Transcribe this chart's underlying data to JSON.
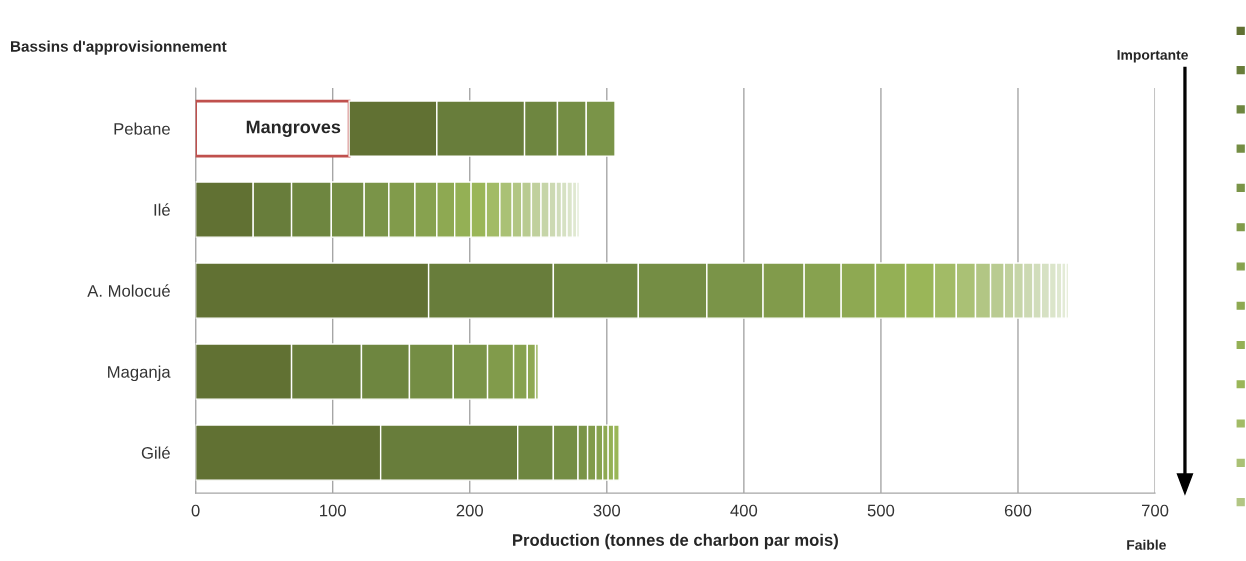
{
  "chart_data": {
    "type": "bar",
    "orientation": "horizontal",
    "stacked": true,
    "ylabel": "Bassins d'approvisionnement",
    "xlabel": "Production (tonnes de charbon par mois)",
    "categories": [
      "Pebane",
      "Ilé",
      "A. Molocué",
      "Maganja",
      "Gilé"
    ],
    "xlim": [
      0,
      700
    ],
    "xticks": [
      0,
      100,
      200,
      300,
      400,
      500,
      600,
      700
    ],
    "grid": "x",
    "annotations": [
      "Importante",
      "Faible"
    ],
    "series": [
      {
        "name": "Mangroves",
        "color": "#ffffff",
        "values": [
          112,
          null,
          null,
          null,
          null
        ]
      },
      {
        "color": "#617133",
        "values": [
          64,
          42,
          170,
          70,
          135
        ]
      },
      {
        "color": "#687d3b",
        "values": [
          64,
          28,
          91,
          51,
          100
        ]
      },
      {
        "color": "#6e8640",
        "values": [
          24,
          29,
          62,
          35,
          26
        ]
      },
      {
        "color": "#748d44",
        "values": [
          21,
          24,
          50,
          32,
          18
        ]
      },
      {
        "color": "#7a9448",
        "values": [
          21,
          18,
          41,
          25,
          7
        ]
      },
      {
        "color": "#819b4b",
        "values": [
          null,
          19,
          30,
          19,
          6
        ]
      },
      {
        "color": "#87a24f",
        "values": [
          null,
          16,
          27,
          10,
          5
        ]
      },
      {
        "color": "#8ea952",
        "values": [
          null,
          13,
          25,
          6,
          4
        ]
      },
      {
        "color": "#94b055",
        "values": [
          null,
          12,
          22,
          2,
          4
        ]
      },
      {
        "color": "#9ab658",
        "values": [
          null,
          11,
          21,
          null,
          4
        ]
      },
      {
        "color": "#a2bb66",
        "values": [
          null,
          10,
          16,
          null,
          null
        ]
      },
      {
        "color": "#aac175",
        "values": [
          null,
          9,
          14,
          null,
          null
        ]
      },
      {
        "color": "#b2c684",
        "values": [
          null,
          7,
          11,
          null,
          null
        ]
      },
      {
        "color": "#b9cb91",
        "values": [
          null,
          7,
          10,
          null,
          null
        ]
      },
      {
        "color": "#c0d09d",
        "values": [
          null,
          7,
          7,
          null,
          null
        ]
      },
      {
        "color": "#c6d5a8",
        "values": [
          null,
          6,
          7,
          null,
          null
        ]
      },
      {
        "color": "#ccd9b2",
        "values": [
          null,
          5,
          7,
          null,
          null
        ]
      },
      {
        "color": "#d1ddbb",
        "values": [
          null,
          4,
          6,
          null,
          null
        ]
      },
      {
        "color": "#d6e1c3",
        "values": [
          null,
          4,
          6,
          null,
          null
        ]
      },
      {
        "color": "#dbe5ca",
        "values": [
          null,
          4,
          5,
          null,
          null
        ]
      },
      {
        "color": "#dfe8d0",
        "values": [
          null,
          3,
          4,
          null,
          null
        ]
      },
      {
        "color": "#e3ebd6",
        "values": [
          null,
          2,
          3,
          null,
          null
        ]
      },
      {
        "color": "#e7eedb",
        "values": [
          null,
          null,
          2,
          null,
          null
        ]
      }
    ]
  }
}
